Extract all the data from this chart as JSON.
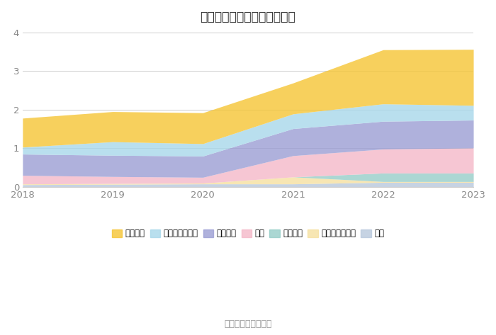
{
  "title": "历年主要资产堆积图（亿元）",
  "years": [
    2018,
    2019,
    2020,
    2021,
    2022,
    2023
  ],
  "series_order": [
    "其它",
    "其他非流动资产",
    "固定资产",
    "存货",
    "应收账款",
    "交易性金融资产",
    "货币资金"
  ],
  "series_data": {
    "其它": [
      0.06,
      0.07,
      0.08,
      0.08,
      0.12,
      0.12
    ],
    "其他非流动资产": [
      0.02,
      0.02,
      0.02,
      0.18,
      0.02,
      0.02
    ],
    "固定资产": [
      0.0,
      0.0,
      0.0,
      0.0,
      0.22,
      0.22
    ],
    "存货": [
      0.22,
      0.18,
      0.15,
      0.55,
      0.62,
      0.65
    ],
    "应收账款": [
      0.55,
      0.55,
      0.55,
      0.7,
      0.72,
      0.72
    ],
    "交易性金融资产": [
      0.18,
      0.35,
      0.32,
      0.38,
      0.45,
      0.38
    ],
    "货币资金": [
      0.75,
      0.78,
      0.8,
      0.8,
      1.4,
      1.45
    ]
  },
  "colors": {
    "货币资金": "#F5C535",
    "交易性金融资产": "#A8D8EA",
    "应收账款": "#9B9ED4",
    "存货": "#F4B8C8",
    "固定资产": "#96CEC8",
    "其他非流动资产": "#F5E0A0",
    "其它": "#B8C8DC"
  },
  "ylim": [
    0,
    4
  ],
  "yticks": [
    0,
    1,
    2,
    3,
    4
  ],
  "legend_order": [
    "货币资金",
    "交易性金融资产",
    "应收账款",
    "存货",
    "固定资产",
    "其他非流动资产",
    "其它"
  ],
  "source": "数据来源：恒生聚源",
  "bg_color": "#ffffff",
  "grid_color": "#cccccc"
}
